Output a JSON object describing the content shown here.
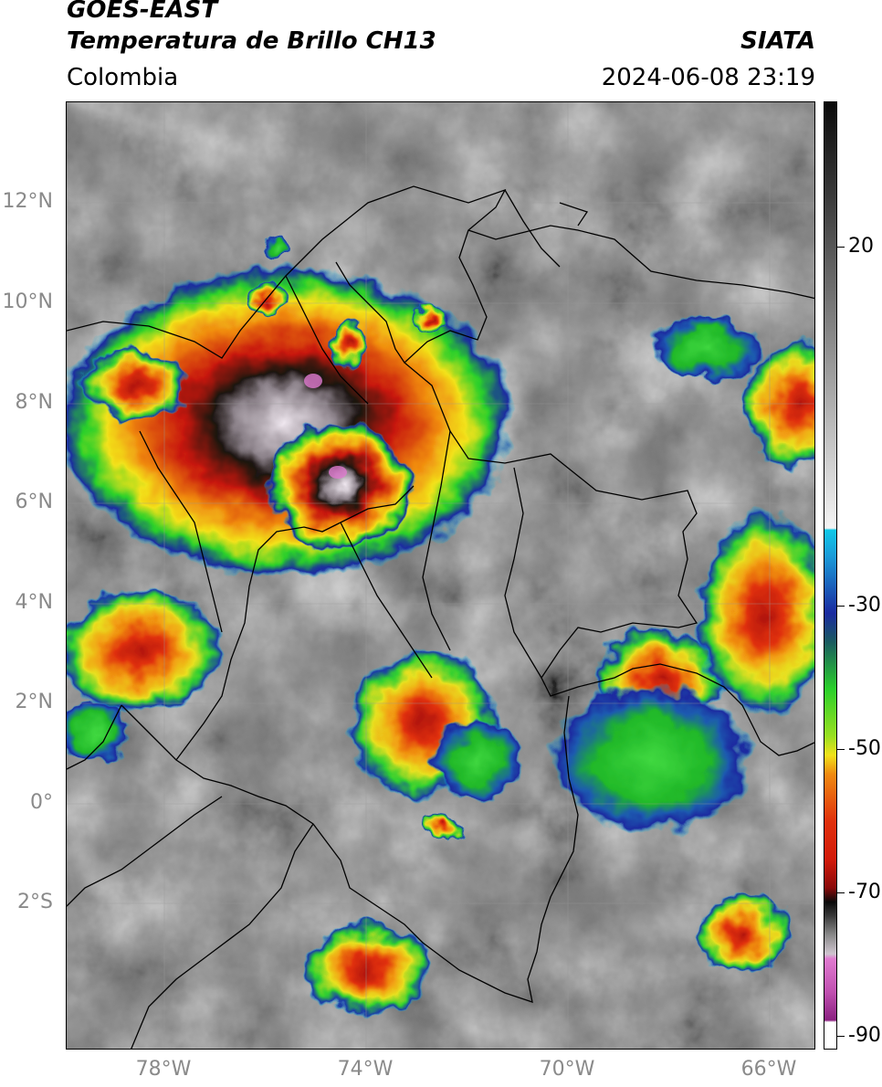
{
  "header": {
    "satellite": "GOES-EAST",
    "product": "Temperatura de Brillo CH13",
    "region": "Colombia",
    "agency": "SIATA",
    "datetime": "2024-06-08 23:19"
  },
  "map": {
    "lat_labels": [
      "12°N",
      "10°N",
      "8°N",
      "6°N",
      "4°N",
      "2°N",
      "0°",
      "2°S"
    ],
    "lon_labels": [
      "78°W",
      "74°W",
      "70°W",
      "66°W"
    ]
  },
  "colorbar": {
    "tick_labels": [
      "20",
      "-30",
      "-50",
      "-70",
      "-90"
    ],
    "colors": {
      "magenta": "#e07ad0",
      "white": "#f4f4f4",
      "black": "#0a0a0a",
      "red": "#d21a0a",
      "orange": "#f08a10",
      "yellow": "#f2e21a",
      "green": "#2ad02a",
      "blue": "#1a2aa0",
      "cyan": "#10c8e8"
    }
  }
}
